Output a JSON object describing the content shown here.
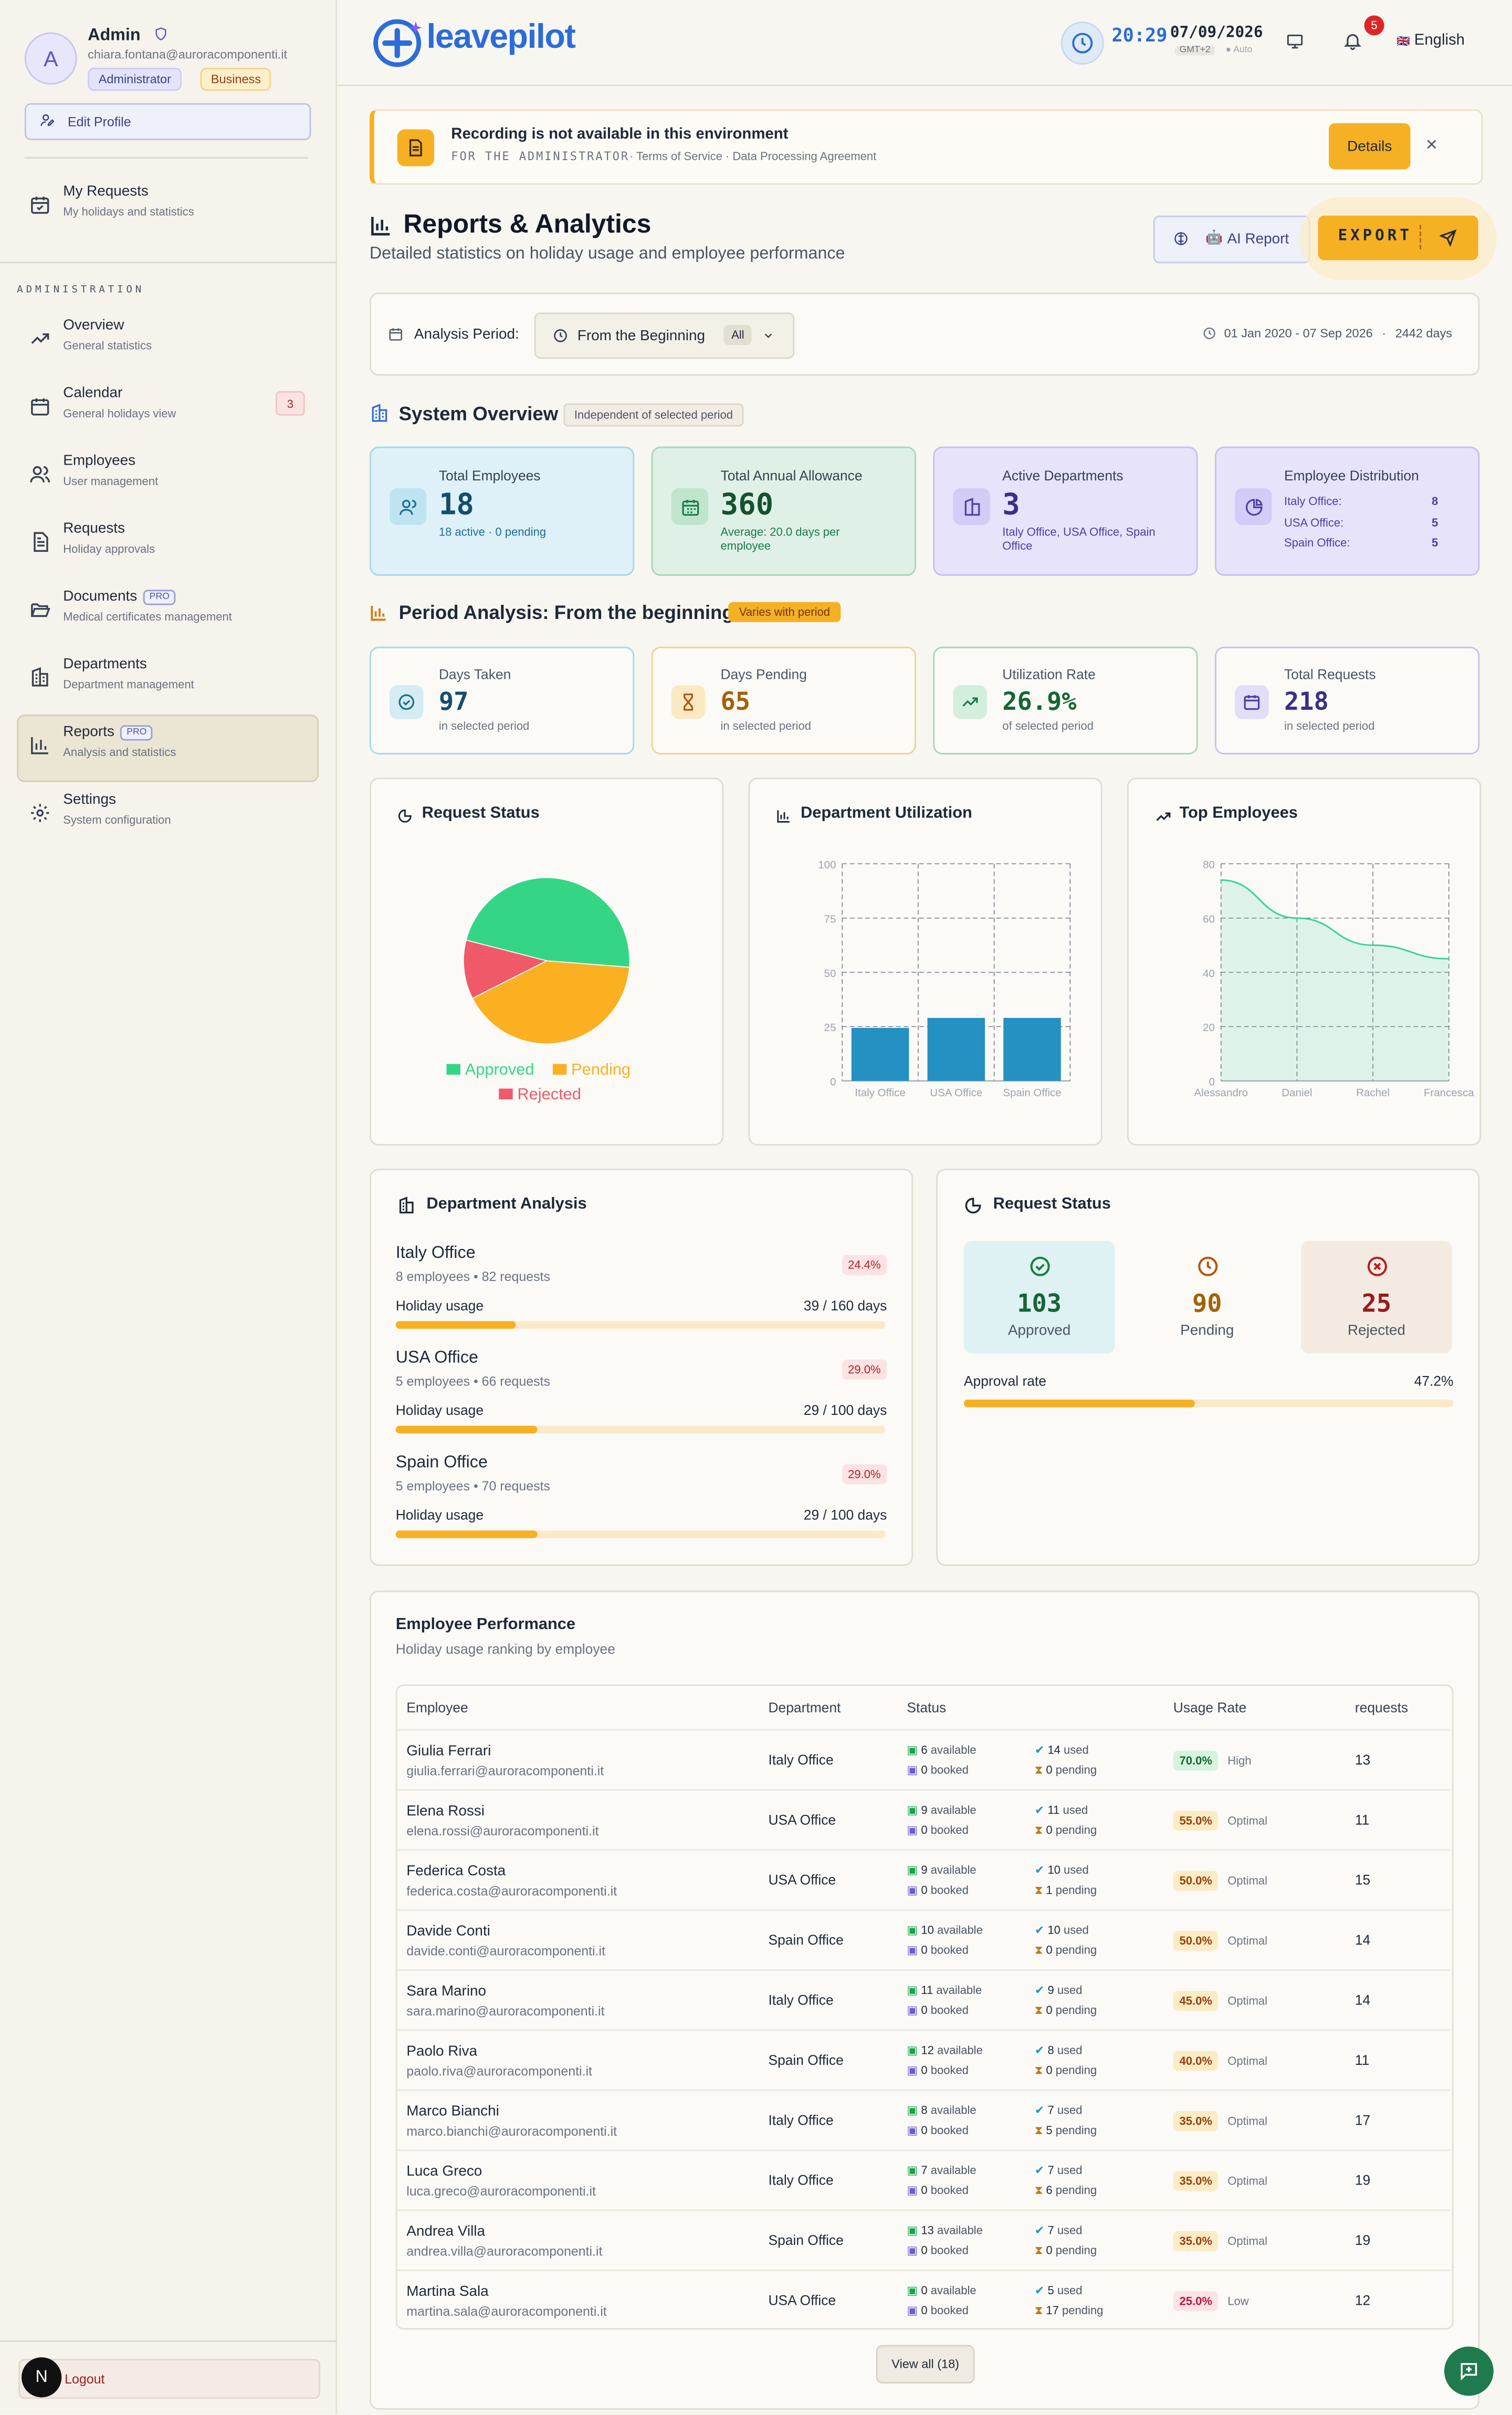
{
  "profile": {
    "initial": "A",
    "name": "Admin",
    "email": "chiara.fontana@auroracomponenti.it",
    "role_badge": "Administrator",
    "plan_badge": "Business",
    "edit_label": "Edit Profile"
  },
  "sidebar": {
    "my_requests": {
      "title": "My Requests",
      "subtitle": "My holidays and statistics"
    },
    "section_label": "ADMINISTRATION",
    "items": [
      {
        "title": "Overview",
        "subtitle": "General statistics"
      },
      {
        "title": "Calendar",
        "subtitle": "General holidays view",
        "count": "3"
      },
      {
        "title": "Employees",
        "subtitle": "User management"
      },
      {
        "title": "Requests",
        "subtitle": "Holiday approvals"
      },
      {
        "title": "Documents",
        "subtitle": "Medical certificates management",
        "pro": "PRO"
      },
      {
        "title": "Departments",
        "subtitle": "Department management"
      },
      {
        "title": "Reports",
        "subtitle": "Analysis and statistics",
        "pro": "PRO"
      },
      {
        "title": "Settings",
        "subtitle": "System configuration"
      }
    ],
    "logout": "Logout",
    "logout_avatar": "N"
  },
  "header": {
    "logo": "leavepilot",
    "time": "20:29",
    "date": "07/09/2026",
    "tz": "GMT+2",
    "tz_mode": "Auto",
    "notifications": "5",
    "language": "English",
    "flag": "🇬🇧"
  },
  "banner": {
    "title": "Recording is not available in this environment",
    "for_label": "FOR THE ADMINISTRATOR",
    "links": "· Terms of Service · Data Processing Agreement",
    "details": "Details"
  },
  "page": {
    "title": "Reports & Analytics",
    "subtitle": "Detailed statistics on holiday usage and employee performance",
    "ai_report": "AI Report",
    "export": "EXPORT"
  },
  "period": {
    "label": "Analysis Period:",
    "selected": "From the Beginning",
    "all": "All",
    "range": "01 Jan 2020 - 07 Sep 2026",
    "days": "2442 days"
  },
  "overview": {
    "title": "System Overview",
    "badge": "Independent of selected period",
    "cards": [
      {
        "label": "Total Employees",
        "value": "18",
        "sub": "18 active · 0 pending"
      },
      {
        "label": "Total Annual Allowance",
        "value": "360",
        "sub": "Average: 20.0 days per employee"
      },
      {
        "label": "Active Departments",
        "value": "3",
        "sub": "Italy Office, USA Office, Spain Office"
      },
      {
        "label": "Employee Distribution",
        "rows": [
          {
            "k": "Italy Office:",
            "v": "8"
          },
          {
            "k": "USA Office:",
            "v": "5"
          },
          {
            "k": "Spain Office:",
            "v": "5"
          }
        ]
      }
    ]
  },
  "period_analysis": {
    "title": "Period Analysis: From the beginning",
    "badge": "Varies with period",
    "cards": [
      {
        "label": "Days Taken",
        "value": "97",
        "sub": "in selected period"
      },
      {
        "label": "Days Pending",
        "value": "65",
        "sub": "in selected period"
      },
      {
        "label": "Utilization Rate",
        "value": "26.9%",
        "sub": "of selected period"
      },
      {
        "label": "Total Requests",
        "value": "218",
        "sub": "in selected period"
      }
    ]
  },
  "charts": {
    "pie_title": "Request Status",
    "bar_title": "Department Utilization",
    "line_title": "Top Employees"
  },
  "chart_data": [
    {
      "type": "pie",
      "title": "Request Status",
      "categories": [
        "Approved",
        "Pending",
        "Rejected"
      ],
      "values": [
        103,
        90,
        25
      ],
      "colors": [
        "#34d686",
        "#fbb022",
        "#f05a68"
      ],
      "legend": "bottom"
    },
    {
      "type": "bar",
      "title": "Department Utilization",
      "categories": [
        "Italy Office",
        "USA Office",
        "Spain Office"
      ],
      "values": [
        24.4,
        29,
        29
      ],
      "ylim": [
        0,
        100
      ],
      "yticks": [
        0,
        25,
        50,
        75,
        100
      ],
      "grid": true,
      "color": "#2590c2"
    },
    {
      "type": "area",
      "title": "Top Employees",
      "categories": [
        "Alessandro",
        "Daniel",
        "Rachel",
        "Francesca"
      ],
      "values": [
        74,
        60,
        50,
        45
      ],
      "ylim": [
        0,
        80
      ],
      "yticks": [
        0,
        20,
        40,
        60,
        80
      ],
      "grid": true,
      "color": "#34d399"
    }
  ],
  "dept_analysis": {
    "title": "Department Analysis",
    "usage_label": "Holiday usage",
    "rows": [
      {
        "name": "Italy Office",
        "meta": "8 employees • 82 requests",
        "pct": "24.4%",
        "usage": "39 / 160 days",
        "fill": 0.244
      },
      {
        "name": "USA Office",
        "meta": "5 employees • 66 requests",
        "pct": "29.0%",
        "usage": "29 / 100 days",
        "fill": 0.29
      },
      {
        "name": "Spain Office",
        "meta": "5 employees • 70 requests",
        "pct": "29.0%",
        "usage": "29 / 100 days",
        "fill": 0.29
      }
    ]
  },
  "request_status": {
    "title": "Request Status",
    "approved": {
      "value": "103",
      "label": "Approved"
    },
    "pending": {
      "value": "90",
      "label": "Pending"
    },
    "rejected": {
      "value": "25",
      "label": "Rejected"
    },
    "approval_label": "Approval rate",
    "approval_value": "47.2%",
    "approval_fill": 0.472
  },
  "performance": {
    "title": "Employee Performance",
    "subtitle": "Holiday usage ranking by employee",
    "headers": [
      "Employee",
      "Department",
      "Status",
      "Usage Rate",
      "requests"
    ],
    "rows": [
      {
        "name": "Giulia Ferrari",
        "email": "giulia.ferrari@auroracomponenti.it",
        "dept": "Italy Office",
        "available": "6",
        "booked": "0",
        "used": "14",
        "pending": "0",
        "rate": "70.0%",
        "level": "High",
        "requests": "13"
      },
      {
        "name": "Elena Rossi",
        "email": "elena.rossi@auroracomponenti.it",
        "dept": "USA Office",
        "available": "9",
        "booked": "0",
        "used": "11",
        "pending": "0",
        "rate": "55.0%",
        "level": "Optimal",
        "requests": "11"
      },
      {
        "name": "Federica Costa",
        "email": "federica.costa@auroracomponenti.it",
        "dept": "USA Office",
        "available": "9",
        "booked": "0",
        "used": "10",
        "pending": "1",
        "rate": "50.0%",
        "level": "Optimal",
        "requests": "15"
      },
      {
        "name": "Davide Conti",
        "email": "davide.conti@auroracomponenti.it",
        "dept": "Spain Office",
        "available": "10",
        "booked": "0",
        "used": "10",
        "pending": "0",
        "rate": "50.0%",
        "level": "Optimal",
        "requests": "14"
      },
      {
        "name": "Sara Marino",
        "email": "sara.marino@auroracomponenti.it",
        "dept": "Italy Office",
        "available": "11",
        "booked": "0",
        "used": "9",
        "pending": "0",
        "rate": "45.0%",
        "level": "Optimal",
        "requests": "14"
      },
      {
        "name": "Paolo Riva",
        "email": "paolo.riva@auroracomponenti.it",
        "dept": "Spain Office",
        "available": "12",
        "booked": "0",
        "used": "8",
        "pending": "0",
        "rate": "40.0%",
        "level": "Optimal",
        "requests": "11"
      },
      {
        "name": "Marco Bianchi",
        "email": "marco.bianchi@auroracomponenti.it",
        "dept": "Italy Office",
        "available": "8",
        "booked": "0",
        "used": "7",
        "pending": "5",
        "rate": "35.0%",
        "level": "Optimal",
        "requests": "17"
      },
      {
        "name": "Luca Greco",
        "email": "luca.greco@auroracomponenti.it",
        "dept": "Italy Office",
        "available": "7",
        "booked": "0",
        "used": "7",
        "pending": "6",
        "rate": "35.0%",
        "level": "Optimal",
        "requests": "19"
      },
      {
        "name": "Andrea Villa",
        "email": "andrea.villa@auroracomponenti.it",
        "dept": "Spain Office",
        "available": "13",
        "booked": "0",
        "used": "7",
        "pending": "0",
        "rate": "35.0%",
        "level": "Optimal",
        "requests": "19"
      },
      {
        "name": "Martina Sala",
        "email": "martina.sala@auroracomponenti.it",
        "dept": "USA Office",
        "available": "0",
        "booked": "0",
        "used": "5",
        "pending": "17",
        "rate": "25.0%",
        "level": "Low",
        "requests": "12"
      }
    ],
    "status_words": {
      "available": "available",
      "booked": "booked",
      "used": "used",
      "pending": "pending"
    },
    "view_all": "View all (18)"
  },
  "colors": {
    "accent": "#f5b024",
    "brand": "#2b6cd9",
    "approved": "#34d686",
    "pending": "#fbb022",
    "rejected": "#f05a68",
    "bar": "#2590c2"
  }
}
